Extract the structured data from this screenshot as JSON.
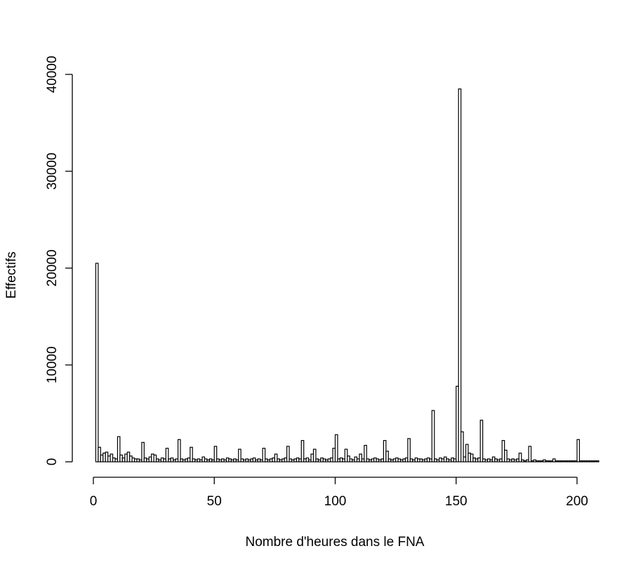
{
  "chart_data": {
    "type": "histogram",
    "x_label": "Nombre d'heures dans le FNA",
    "y_label": "Effectifs",
    "bins": [
      1,
      2,
      3,
      4,
      5,
      6,
      7,
      8,
      9,
      10,
      11,
      12,
      13,
      14,
      15,
      16,
      17,
      18,
      19,
      20,
      21,
      22,
      23,
      24,
      25,
      26,
      27,
      28,
      29,
      30,
      31,
      32,
      33,
      34,
      35,
      36,
      37,
      38,
      39,
      40,
      41,
      42,
      43,
      44,
      45,
      46,
      47,
      48,
      49,
      50,
      51,
      52,
      53,
      54,
      55,
      56,
      57,
      58,
      59,
      60,
      61,
      62,
      63,
      64,
      65,
      66,
      67,
      68,
      69,
      70,
      71,
      72,
      73,
      74,
      75,
      76,
      77,
      78,
      79,
      80,
      81,
      82,
      83,
      84,
      85,
      86,
      87,
      88,
      89,
      90,
      91,
      92,
      93,
      94,
      95,
      96,
      97,
      98,
      99,
      100,
      101,
      102,
      103,
      104,
      105,
      106,
      107,
      108,
      109,
      110,
      111,
      112,
      113,
      114,
      115,
      116,
      117,
      118,
      119,
      120,
      121,
      122,
      123,
      124,
      125,
      126,
      127,
      128,
      129,
      130,
      131,
      132,
      133,
      134,
      135,
      136,
      137,
      138,
      139,
      140,
      141,
      142,
      143,
      144,
      145,
      146,
      147,
      148,
      149,
      150,
      151,
      152,
      153,
      154,
      155,
      156,
      157,
      158,
      159,
      160,
      161,
      162,
      163,
      164,
      165,
      166,
      167,
      168,
      169,
      170,
      171,
      172,
      173,
      174,
      175,
      176,
      177,
      178,
      179,
      180,
      181,
      182,
      183,
      184,
      185,
      186,
      187,
      188,
      189,
      190,
      191,
      192,
      193,
      194,
      195,
      196,
      197,
      198,
      199,
      200,
      201,
      202,
      203,
      204,
      205,
      206,
      207,
      208,
      209
    ],
    "values": [
      20500,
      1500,
      700,
      900,
      1000,
      600,
      800,
      400,
      300,
      2600,
      700,
      400,
      800,
      1000,
      600,
      400,
      300,
      300,
      200,
      2000,
      400,
      300,
      500,
      800,
      700,
      300,
      200,
      400,
      300,
      1400,
      300,
      400,
      200,
      300,
      2300,
      300,
      200,
      300,
      400,
      1500,
      300,
      200,
      300,
      200,
      500,
      300,
      200,
      300,
      200,
      1600,
      300,
      200,
      300,
      200,
      400,
      300,
      200,
      300,
      200,
      1300,
      300,
      200,
      300,
      200,
      300,
      400,
      200,
      300,
      200,
      1400,
      300,
      200,
      300,
      400,
      800,
      300,
      200,
      300,
      400,
      1600,
      300,
      200,
      300,
      400,
      300,
      2200,
      300,
      400,
      200,
      800,
      1300,
      300,
      200,
      400,
      300,
      200,
      300,
      400,
      1400,
      2800,
      300,
      400,
      300,
      1300,
      600,
      300,
      200,
      500,
      300,
      800,
      300,
      1700,
      300,
      200,
      300,
      400,
      300,
      200,
      300,
      2200,
      1100,
      300,
      200,
      300,
      400,
      300,
      200,
      300,
      400,
      2400,
      300,
      200,
      400,
      300,
      300,
      200,
      300,
      400,
      300,
      5300,
      300,
      200,
      400,
      300,
      500,
      300,
      200,
      400,
      300,
      7800,
      38500,
      3100,
      500,
      1800,
      900,
      800,
      400,
      300,
      400,
      4300,
      300,
      200,
      300,
      200,
      500,
      300,
      200,
      300,
      2200,
      1200,
      300,
      200,
      300,
      200,
      300,
      900,
      200,
      100,
      200,
      1600,
      100,
      200,
      100,
      100,
      100,
      200,
      100,
      100,
      100,
      300,
      100,
      100,
      100,
      100,
      100,
      100,
      100,
      100,
      100,
      2300,
      100,
      100,
      100,
      100,
      100,
      100,
      100,
      100
    ],
    "color": "#ffffff",
    "edge_color": "#000000",
    "xlim": [
      0,
      200
    ],
    "xticks": [
      0,
      50,
      100,
      150,
      200
    ],
    "ylim": [
      0,
      40000
    ],
    "yticks": [
      0,
      10000,
      20000,
      30000,
      40000
    ],
    "grid": false
  }
}
